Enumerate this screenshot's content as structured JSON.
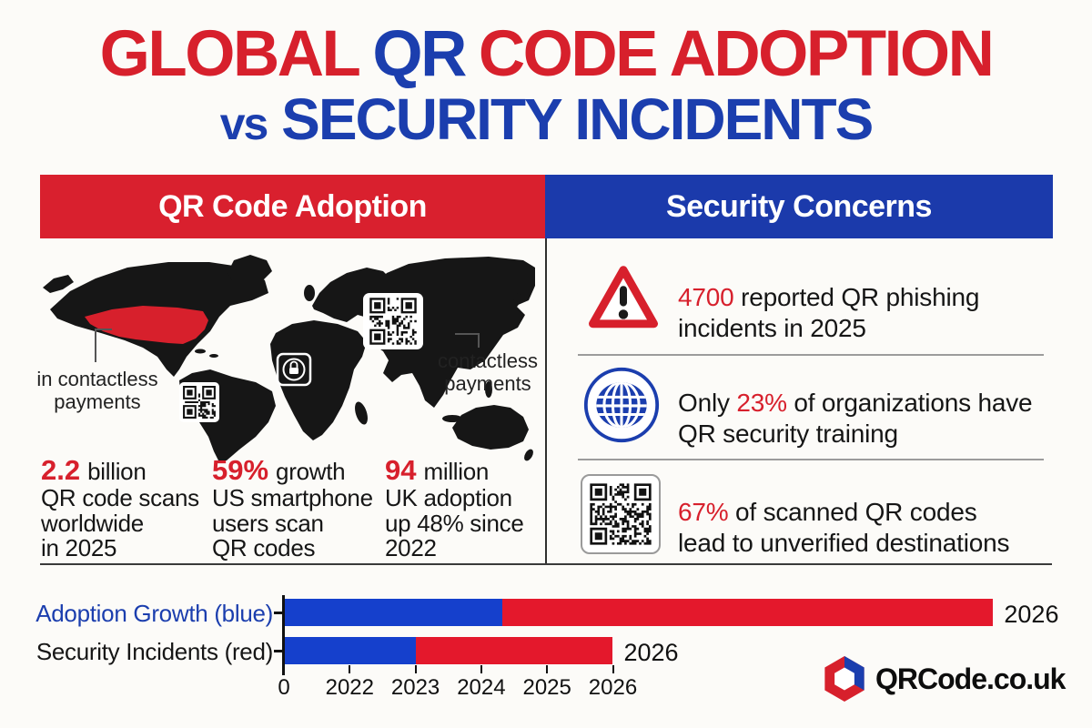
{
  "colors": {
    "accent_red": "#d7202c",
    "accent_blue": "#1b3eae",
    "header_red": "#d9202e",
    "header_blue": "#1b3aab",
    "chart_blue": "#1540cc",
    "chart_red": "#e4182c",
    "map_black": "#161616",
    "text": "#161616"
  },
  "title": {
    "seg_global": "GLOBAL",
    "seg_qr": "QR",
    "seg_code": "CODE ADOPTION",
    "vs": "vs",
    "line2": "SECURITY INCIDENTS"
  },
  "left_panel": {
    "header": "QR Code Adoption",
    "map": {
      "left_callout": "in contactless payments",
      "right_callout": "contactless payments",
      "highlight_region": "United States",
      "icons": [
        "qr-code-icon",
        "qr-code-icon",
        "lock-icon"
      ]
    },
    "stats": [
      {
        "value": "2.2",
        "unit": "billion",
        "line1": "QR code scans",
        "line2": "worldwide",
        "line3": "in 2025"
      },
      {
        "value": "59%",
        "unit": "growth",
        "line1": "US smartphone",
        "line2": "users scan",
        "line3": "QR codes"
      },
      {
        "value": "94",
        "unit": "million",
        "line1": "UK adoption",
        "line2": "up 48% since",
        "line3": "2022"
      }
    ]
  },
  "right_panel": {
    "header": "Security Concerns",
    "items": [
      {
        "icon": "warning-triangle-icon",
        "p1": "4700",
        "p2": " reported QR phishing",
        "p3": "incidents in 2025"
      },
      {
        "icon": "globe-icon",
        "p1": "Only ",
        "p2": "23%",
        "p3": " of organizations have",
        "p4": "QR security training"
      },
      {
        "icon": "qr-code-icon",
        "p1": "67%",
        "p2": " of scanned QR codes",
        "p3": "lead to unverified destinations"
      }
    ]
  },
  "chart_data": {
    "type": "bar",
    "orientation": "horizontal",
    "axis_unit": "tick-index (ticks evenly spaced)",
    "x_tick_labels": [
      "0",
      "2022",
      "2023",
      "2024",
      "2025",
      "2026"
    ],
    "rows": [
      {
        "label": "Adoption Growth (blue)",
        "label_color": "#1b3eae",
        "segments": [
          {
            "color": "blue",
            "from": 0,
            "to": 3.32
          },
          {
            "color": "red",
            "from": 3.32,
            "to": 10.78
          }
        ],
        "end_label": "2026"
      },
      {
        "label": "Security Incidents (red)",
        "label_color": "#161616",
        "segments": [
          {
            "color": "blue",
            "from": 0,
            "to": 2.0
          },
          {
            "color": "red",
            "from": 2.0,
            "to": 5.0
          }
        ],
        "end_label": "2026"
      }
    ]
  },
  "footer": {
    "logo_icon": "qr-hexagon-logo",
    "brand": "QRCode.co.uk"
  }
}
